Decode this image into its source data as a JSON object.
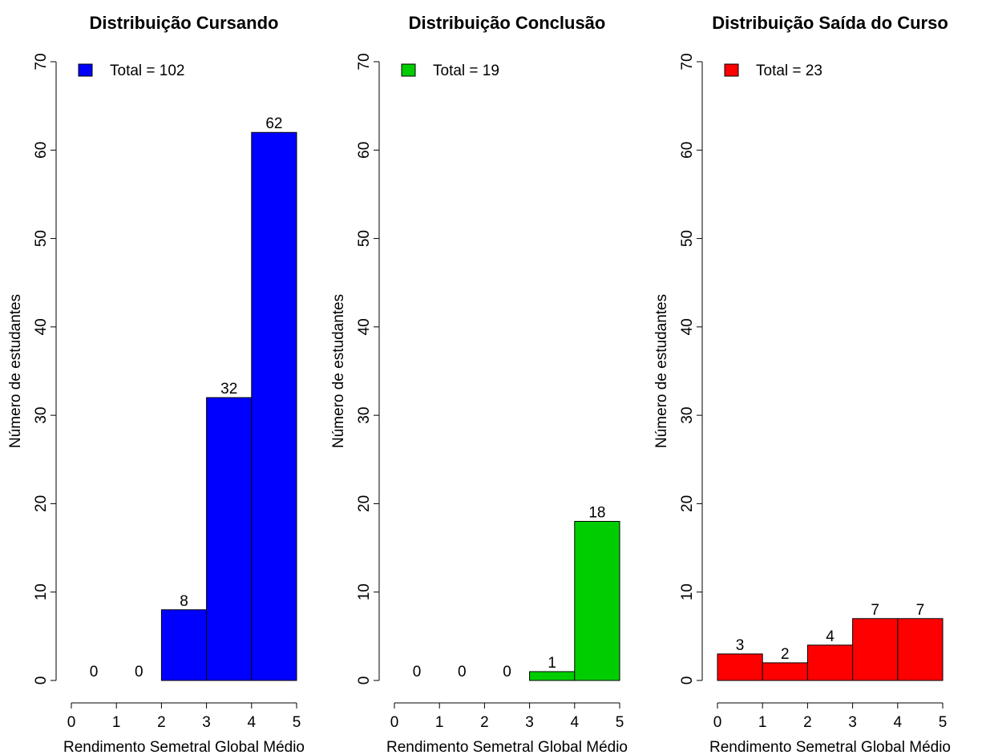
{
  "chart_data": [
    {
      "type": "histogram",
      "title": "Distribuição Cursando",
      "x_label": "Rendimento Semetral Global Médio",
      "y_label": "Número de estudantes",
      "bins": [
        0,
        1,
        2,
        3,
        4,
        5
      ],
      "values": [
        0,
        0,
        8,
        32,
        62
      ],
      "color": "#0000ff",
      "legend": "Total = 102",
      "legend_position": "top-left",
      "xlim": [
        0,
        5
      ],
      "xticks": [
        0,
        1,
        2,
        3,
        4,
        5
      ],
      "ylim": [
        0,
        70
      ],
      "yticks": [
        0,
        10,
        20,
        30,
        40,
        50,
        60,
        70
      ]
    },
    {
      "type": "histogram",
      "title": "Distribuição Conclusão",
      "x_label": "Rendimento Semetral Global Médio",
      "y_label": "Número de estudantes",
      "bins": [
        0,
        1,
        2,
        3,
        4,
        5
      ],
      "values": [
        0,
        0,
        0,
        1,
        18
      ],
      "color": "#00cd00",
      "legend": "Total = 19",
      "legend_position": "top-left",
      "xlim": [
        0,
        5
      ],
      "xticks": [
        0,
        1,
        2,
        3,
        4,
        5
      ],
      "ylim": [
        0,
        70
      ],
      "yticks": [
        0,
        10,
        20,
        30,
        40,
        50,
        60,
        70
      ]
    },
    {
      "type": "histogram",
      "title": "Distribuição Saída do Curso",
      "x_label": "Rendimento Semetral Global Médio",
      "y_label": "Número de estudantes",
      "bins": [
        0,
        1,
        2,
        3,
        4,
        5
      ],
      "values": [
        3,
        2,
        4,
        7,
        7
      ],
      "color": "#ff0000",
      "legend": "Total = 23",
      "legend_position": "top-left",
      "xlim": [
        0,
        5
      ],
      "xticks": [
        0,
        1,
        2,
        3,
        4,
        5
      ],
      "ylim": [
        0,
        70
      ],
      "yticks": [
        0,
        10,
        20,
        30,
        40,
        50,
        60,
        70
      ]
    }
  ]
}
